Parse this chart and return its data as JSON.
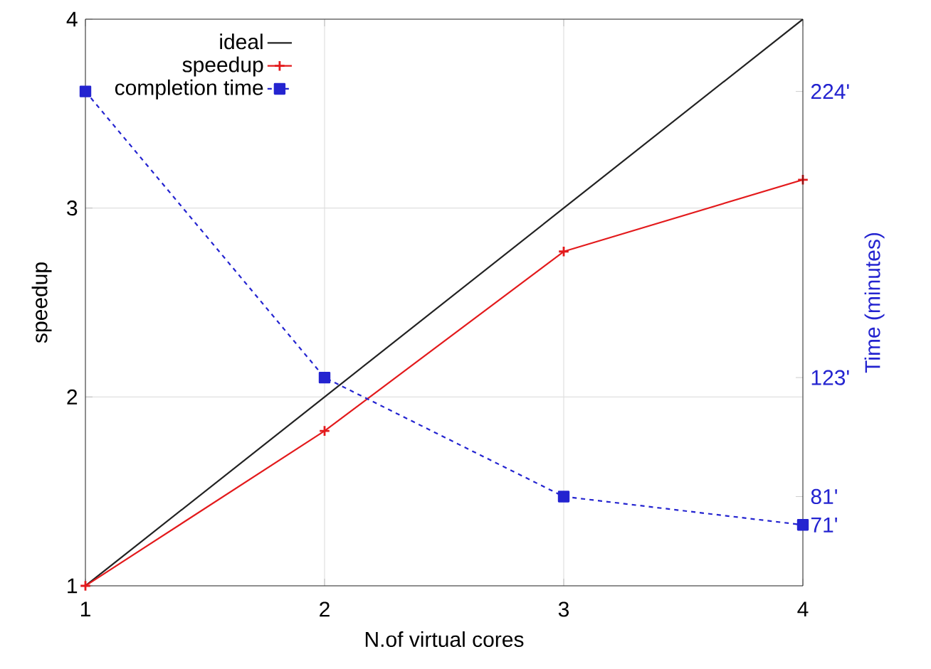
{
  "chart_data": {
    "type": "line",
    "xlabel": "N.of virtual cores",
    "ylabel": "speedup",
    "y2label": "Time (minutes)",
    "x": [
      1,
      2,
      3,
      4
    ],
    "series": [
      {
        "name": "ideal",
        "color": "#222222",
        "values": [
          1,
          2,
          3,
          4
        ],
        "marker": "none",
        "line_style": "solid"
      },
      {
        "name": "speedup",
        "color": "#e31a1c",
        "values": [
          1,
          1.82,
          2.77,
          3.15
        ],
        "marker": "cross",
        "line_style": "solid"
      },
      {
        "name": "completion time",
        "color": "#2424d0",
        "values": [
          224,
          123,
          81,
          71
        ],
        "marker": "square",
        "line_style": "dashed",
        "axis": "y2"
      }
    ],
    "xlim": [
      1,
      4
    ],
    "ylim": [
      1,
      4
    ],
    "y2lim": [
      49.5,
      249.5
    ],
    "xticks": [
      1,
      2,
      3,
      4
    ],
    "yticks": [
      1,
      2,
      3,
      4
    ],
    "y2ticks": [
      {
        "value": 224,
        "label": "224'"
      },
      {
        "value": 123,
        "label": "123'"
      },
      {
        "value": 81,
        "label": "81'"
      },
      {
        "value": 71,
        "label": "71'"
      }
    ],
    "grid": true,
    "legend": "top left"
  }
}
